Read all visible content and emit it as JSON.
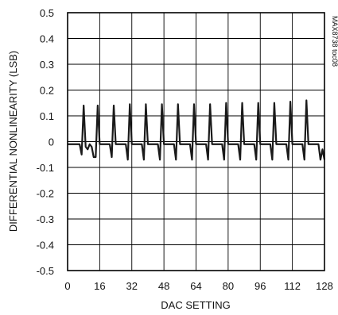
{
  "chart_data": {
    "type": "line",
    "xlabel": "DAC SETTING",
    "ylabel": "DIFFERENTIAL NONLINEARITY (LSB)",
    "xlim": [
      0,
      128
    ],
    "ylim": [
      -0.5,
      0.5
    ],
    "xticks": [
      "0",
      "16",
      "32",
      "48",
      "64",
      "80",
      "96",
      "112",
      "128"
    ],
    "yticks": [
      "0.5",
      "0.4",
      "0.3",
      "0.2",
      "0.1",
      "0",
      "-0.1",
      "-0.2",
      "-0.3",
      "-0.4",
      "-0.5"
    ],
    "grid": true,
    "annotation": "MAX8738 toc08",
    "series": [
      {
        "values": [
          [
            0,
            -0.01
          ],
          [
            6,
            -0.01
          ],
          [
            7,
            -0.05
          ],
          [
            8,
            0.14
          ],
          [
            9,
            -0.02
          ],
          [
            10,
            -0.03
          ],
          [
            11,
            -0.01
          ],
          [
            12,
            -0.02
          ],
          [
            13,
            -0.06
          ],
          [
            14,
            -0.06
          ],
          [
            15,
            0.14
          ],
          [
            16,
            -0.01
          ],
          [
            17,
            -0.01
          ],
          [
            21,
            -0.01
          ],
          [
            22,
            -0.06
          ],
          [
            23,
            0.14
          ],
          [
            24,
            -0.01
          ],
          [
            29,
            -0.01
          ],
          [
            30,
            -0.07
          ],
          [
            31,
            0.145
          ],
          [
            32,
            -0.01
          ],
          [
            37,
            -0.01
          ],
          [
            38,
            -0.07
          ],
          [
            39,
            0.145
          ],
          [
            40,
            -0.01
          ],
          [
            45,
            -0.01
          ],
          [
            46,
            -0.07
          ],
          [
            47,
            0.145
          ],
          [
            48,
            -0.01
          ],
          [
            53,
            -0.01
          ],
          [
            54,
            -0.07
          ],
          [
            55,
            0.145
          ],
          [
            56,
            -0.01
          ],
          [
            61,
            -0.01
          ],
          [
            62,
            -0.07
          ],
          [
            63,
            0.145
          ],
          [
            64,
            -0.01
          ],
          [
            69,
            -0.01
          ],
          [
            70,
            -0.07
          ],
          [
            71,
            0.145
          ],
          [
            72,
            -0.01
          ],
          [
            77,
            -0.01
          ],
          [
            78,
            -0.07
          ],
          [
            79,
            0.15
          ],
          [
            80,
            -0.01
          ],
          [
            85,
            -0.01
          ],
          [
            86,
            -0.07
          ],
          [
            87,
            0.15
          ],
          [
            88,
            -0.01
          ],
          [
            93,
            -0.01
          ],
          [
            94,
            -0.07
          ],
          [
            95,
            0.15
          ],
          [
            96,
            -0.01
          ],
          [
            101,
            -0.01
          ],
          [
            102,
            -0.07
          ],
          [
            103,
            0.15
          ],
          [
            104,
            -0.01
          ],
          [
            109,
            -0.01
          ],
          [
            110,
            -0.07
          ],
          [
            111,
            0.155
          ],
          [
            112,
            -0.01
          ],
          [
            117,
            -0.01
          ],
          [
            118,
            -0.07
          ],
          [
            119,
            0.16
          ],
          [
            120,
            -0.01
          ],
          [
            125,
            -0.01
          ],
          [
            126,
            -0.07
          ],
          [
            127,
            -0.03
          ],
          [
            128,
            -0.07
          ]
        ]
      }
    ]
  }
}
